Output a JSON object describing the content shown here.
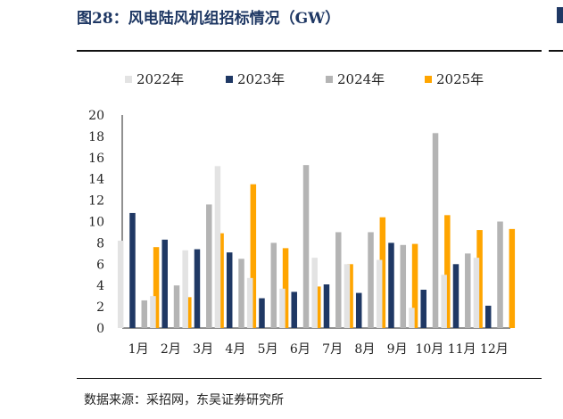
{
  "figure": {
    "title": "图28：风电陆风机组招标情况（GW）",
    "source": "数据来源：采招网，东吴证券研究所"
  },
  "chart_data": {
    "type": "bar",
    "title": "",
    "xlabel": "",
    "ylabel": "",
    "ylim": [
      0,
      20
    ],
    "yticks": [
      "0",
      "2",
      "4",
      "6",
      "8",
      "10",
      "12",
      "14",
      "16",
      "18",
      "20"
    ],
    "grid": false,
    "legend_position": "top",
    "categories": [
      "1月",
      "2月",
      "3月",
      "4月",
      "5月",
      "6月",
      "7月",
      "8月",
      "9月",
      "10月",
      "11月",
      "12月"
    ],
    "series": [
      {
        "name": "2022年",
        "color": "#e3e3e3",
        "values": [
          8.2,
          3.0,
          7.3,
          15.2,
          4.7,
          3.7,
          6.6,
          6.0,
          6.4,
          1.9,
          5.0,
          6.6
        ]
      },
      {
        "name": "2023年",
        "color": "#1f3864",
        "values": [
          10.8,
          8.3,
          7.4,
          7.1,
          2.8,
          3.4,
          4.1,
          3.3,
          8.0,
          3.6,
          6.0,
          2.1
        ]
      },
      {
        "name": "2024年",
        "color": "#b4b4b4",
        "values": [
          2.6,
          4.0,
          11.6,
          6.5,
          8.0,
          15.3,
          9.0,
          9.0,
          7.8,
          18.3,
          7.0,
          10.0
        ]
      },
      {
        "name": "2025年",
        "color": "#ffa500",
        "values": [
          7.6,
          2.9,
          8.9,
          13.5,
          7.5,
          3.9,
          6.0,
          10.4,
          7.9,
          10.6,
          9.2,
          9.3
        ]
      }
    ]
  }
}
